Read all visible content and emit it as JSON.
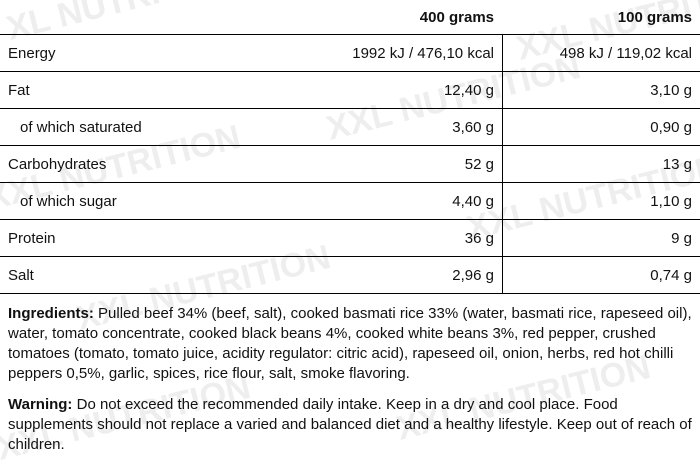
{
  "table": {
    "headers": [
      "",
      "400 grams",
      "100 grams"
    ],
    "rows": [
      {
        "label": "Energy",
        "v400": "1992 kJ / 476,10 kcal",
        "v100": "498 kJ / 119,02 kcal",
        "sub": false
      },
      {
        "label": "Fat",
        "v400": "12,40 g",
        "v100": "3,10 g",
        "sub": false
      },
      {
        "label": "of which saturated",
        "v400": "3,60 g",
        "v100": "0,90 g",
        "sub": true
      },
      {
        "label": "Carbohydrates",
        "v400": "52 g",
        "v100": "13 g",
        "sub": false
      },
      {
        "label": "of which sugar",
        "v400": "4,40 g",
        "v100": "1,10 g",
        "sub": true
      },
      {
        "label": "Protein",
        "v400": "36 g",
        "v100": "9 g",
        "sub": false
      },
      {
        "label": "Salt",
        "v400": "2,96 g",
        "v100": "0,74 g",
        "sub": false
      }
    ]
  },
  "ingredients": {
    "label": "Ingredients:",
    "text": " Pulled beef 34% (beef, salt), cooked basmati rice 33% (water, basmati rice, rapeseed oil), water, tomato concentrate, cooked black beans 4%, cooked white beans 3%, red pepper, crushed tomatoes (tomato, tomato juice, acidity regulator: citric acid), rapeseed oil, onion, herbs, red hot chilli peppers 0,5%, garlic, spices, rice flour, salt, smoke flavoring."
  },
  "warning": {
    "label": "Warning:",
    "text": " Do not exceed the recommended daily intake. Keep in a dry and cool place. Food supplements should not replace a varied and balanced diet and a healthy lifestyle. Keep out of reach of children."
  },
  "watermark": {
    "text": "XXL NUTRITION",
    "color": "#eeeeee"
  }
}
